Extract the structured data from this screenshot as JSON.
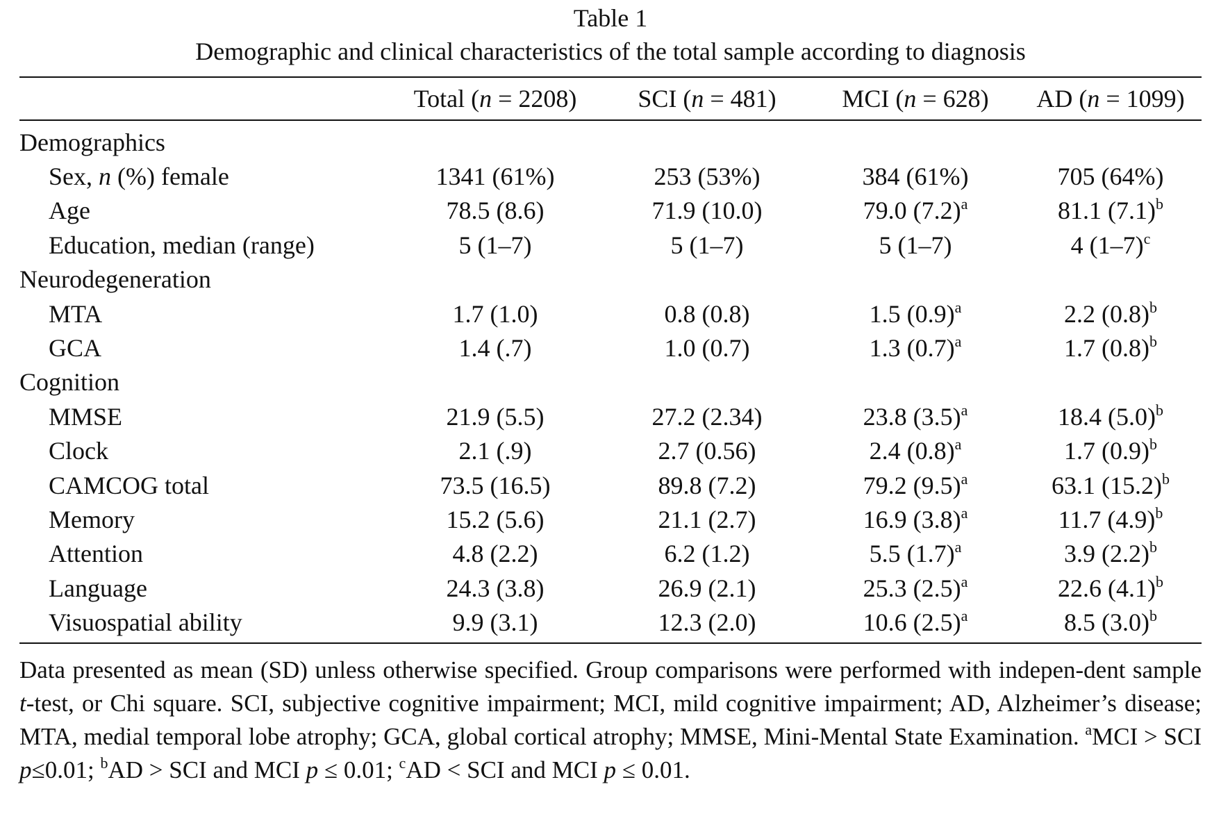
{
  "caption": {
    "label": "Table 1",
    "title": "Demographic and clinical characteristics of the total sample according to diagnosis"
  },
  "table": {
    "columns": [
      {
        "name": "Total",
        "n_label": "n",
        "eq": " = ",
        "n": "2208"
      },
      {
        "name": "SCI",
        "n_label": "n",
        "eq": " = ",
        "n": "481"
      },
      {
        "name": "MCI",
        "n_label": "n",
        "eq": " = ",
        "n": "628"
      },
      {
        "name": "AD",
        "n_label": "n",
        "eq": " = ",
        "n": "1099"
      }
    ],
    "sections": [
      {
        "title": "Demographics",
        "rows": [
          {
            "label_pre": "Sex, ",
            "label_italic": "n",
            "label_post": " (%) female",
            "cells": [
              {
                "v": "1341 (61%)",
                "s": ""
              },
              {
                "v": "253 (53%)",
                "s": ""
              },
              {
                "v": "384 (61%)",
                "s": ""
              },
              {
                "v": "705 (64%)",
                "s": ""
              }
            ]
          },
          {
            "label_pre": "Age",
            "label_italic": "",
            "label_post": "",
            "cells": [
              {
                "v": "78.5 (8.6)",
                "s": ""
              },
              {
                "v": "71.9 (10.0)",
                "s": ""
              },
              {
                "v": "79.0 (7.2)",
                "s": "a"
              },
              {
                "v": "81.1 (7.1)",
                "s": "b"
              }
            ]
          },
          {
            "label_pre": "Education, median (range)",
            "label_italic": "",
            "label_post": "",
            "cells": [
              {
                "v": "5 (1–7)",
                "s": ""
              },
              {
                "v": "5 (1–7)",
                "s": ""
              },
              {
                "v": "5 (1–7)",
                "s": ""
              },
              {
                "v": "4 (1–7)",
                "s": "c"
              }
            ]
          }
        ]
      },
      {
        "title": "Neurodegeneration",
        "rows": [
          {
            "label_pre": "MTA",
            "label_italic": "",
            "label_post": "",
            "cells": [
              {
                "v": "1.7 (1.0)",
                "s": ""
              },
              {
                "v": "0.8 (0.8)",
                "s": ""
              },
              {
                "v": "1.5 (0.9)",
                "s": "a"
              },
              {
                "v": "2.2 (0.8)",
                "s": "b"
              }
            ]
          },
          {
            "label_pre": "GCA",
            "label_italic": "",
            "label_post": "",
            "cells": [
              {
                "v": "1.4 (.7)",
                "s": ""
              },
              {
                "v": "1.0 (0.7)",
                "s": ""
              },
              {
                "v": "1.3 (0.7)",
                "s": "a"
              },
              {
                "v": "1.7 (0.8)",
                "s": "b"
              }
            ]
          }
        ]
      },
      {
        "title": "Cognition",
        "rows": [
          {
            "label_pre": "MMSE",
            "label_italic": "",
            "label_post": "",
            "cells": [
              {
                "v": "21.9 (5.5)",
                "s": ""
              },
              {
                "v": "27.2 (2.34)",
                "s": ""
              },
              {
                "v": "23.8 (3.5)",
                "s": "a"
              },
              {
                "v": "18.4 (5.0)",
                "s": "b"
              }
            ]
          },
          {
            "label_pre": "Clock",
            "label_italic": "",
            "label_post": "",
            "cells": [
              {
                "v": "2.1 (.9)",
                "s": ""
              },
              {
                "v": "2.7 (0.56)",
                "s": ""
              },
              {
                "v": "2.4 (0.8)",
                "s": "a"
              },
              {
                "v": "1.7 (0.9)",
                "s": "b"
              }
            ]
          },
          {
            "label_pre": "CAMCOG total",
            "label_italic": "",
            "label_post": "",
            "cells": [
              {
                "v": "73.5 (16.5)",
                "s": ""
              },
              {
                "v": "89.8 (7.2)",
                "s": ""
              },
              {
                "v": "79.2 (9.5)",
                "s": "a"
              },
              {
                "v": "63.1 (15.2)",
                "s": "b"
              }
            ]
          },
          {
            "label_pre": "Memory",
            "label_italic": "",
            "label_post": "",
            "cells": [
              {
                "v": "15.2 (5.6)",
                "s": ""
              },
              {
                "v": "21.1 (2.7)",
                "s": ""
              },
              {
                "v": "16.9 (3.8)",
                "s": "a"
              },
              {
                "v": "11.7 (4.9)",
                "s": "b"
              }
            ]
          },
          {
            "label_pre": "Attention",
            "label_italic": "",
            "label_post": "",
            "cells": [
              {
                "v": "4.8 (2.2)",
                "s": ""
              },
              {
                "v": "6.2 (1.2)",
                "s": ""
              },
              {
                "v": "5.5 (1.7)",
                "s": "a"
              },
              {
                "v": "3.9 (2.2)",
                "s": "b"
              }
            ]
          },
          {
            "label_pre": "Language",
            "label_italic": "",
            "label_post": "",
            "cells": [
              {
                "v": "24.3 (3.8)",
                "s": ""
              },
              {
                "v": "26.9 (2.1)",
                "s": ""
              },
              {
                "v": "25.3 (2.5)",
                "s": "a"
              },
              {
                "v": "22.6 (4.1)",
                "s": "b"
              }
            ]
          },
          {
            "label_pre": "Visuospatial ability",
            "label_italic": "",
            "label_post": "",
            "cells": [
              {
                "v": "9.9 (3.1)",
                "s": ""
              },
              {
                "v": "12.3 (2.0)",
                "s": ""
              },
              {
                "v": "10.6 (2.5)",
                "s": "a"
              },
              {
                "v": "8.5 (3.0)",
                "s": "b"
              }
            ]
          }
        ]
      }
    ]
  },
  "notes": {
    "text1": "Data presented as mean (SD) unless otherwise specified. Group comparisons were performed with indepen-dent sample ",
    "t": "t",
    "text2": "-test, or Chi square. SCI, subjective cognitive impairment; MCI, mild cognitive impairment; AD, Alzheimer’s disease; MTA, medial temporal lobe atrophy; GCA, global cortical atrophy; MMSE, Mini-Mental State Examination. ",
    "footnotes": [
      {
        "mark": "a",
        "pre": "MCI > SCI ",
        "p": "p",
        "post": "≤0.01; "
      },
      {
        "mark": "b",
        "pre": "AD > SCI and MCI ",
        "p": "p",
        "post": " ≤ 0.01; "
      },
      {
        "mark": "c",
        "pre": "AD < SCI and MCI ",
        "p": "p",
        "post": " ≤ 0.01."
      }
    ]
  }
}
